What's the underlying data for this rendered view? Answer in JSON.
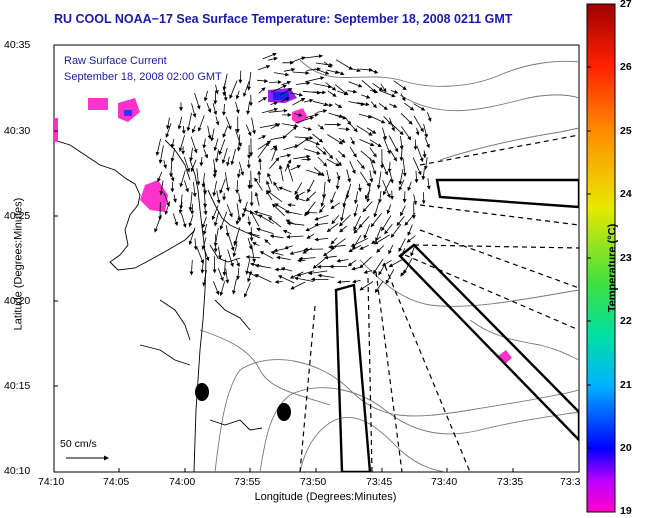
{
  "title": "RU COOL  NOAA−17  Sea Surface Temperature:  September 18, 2008 0211 GMT",
  "legend": {
    "line1": "Raw Surface Current",
    "line2": "September 18, 2008 02:00 GMT"
  },
  "axes": {
    "xlabel": "Longitude (Degrees:Minutes)",
    "ylabel": "Latitude (Degrees:Minutes)",
    "xticks": [
      "74:10",
      "74:05",
      "74:00",
      "73:55",
      "73:50",
      "73:45",
      "73:40",
      "73:35",
      "73:3"
    ],
    "yticks": [
      "40:35",
      "40:30",
      "40:25",
      "40:20",
      "40:15",
      "40:10"
    ]
  },
  "colorbar": {
    "label": "Temperature (°C)",
    "ticks": [
      "27",
      "26",
      "25",
      "24",
      "23",
      "22",
      "21",
      "20",
      "19"
    ],
    "min": 19,
    "max": 27
  },
  "scale_arrow": {
    "label": "50 cm/s"
  },
  "colors": {
    "title": "#1a1aa8",
    "land": "#ffffff",
    "sea": "#ffffff",
    "coast": "#000000"
  }
}
